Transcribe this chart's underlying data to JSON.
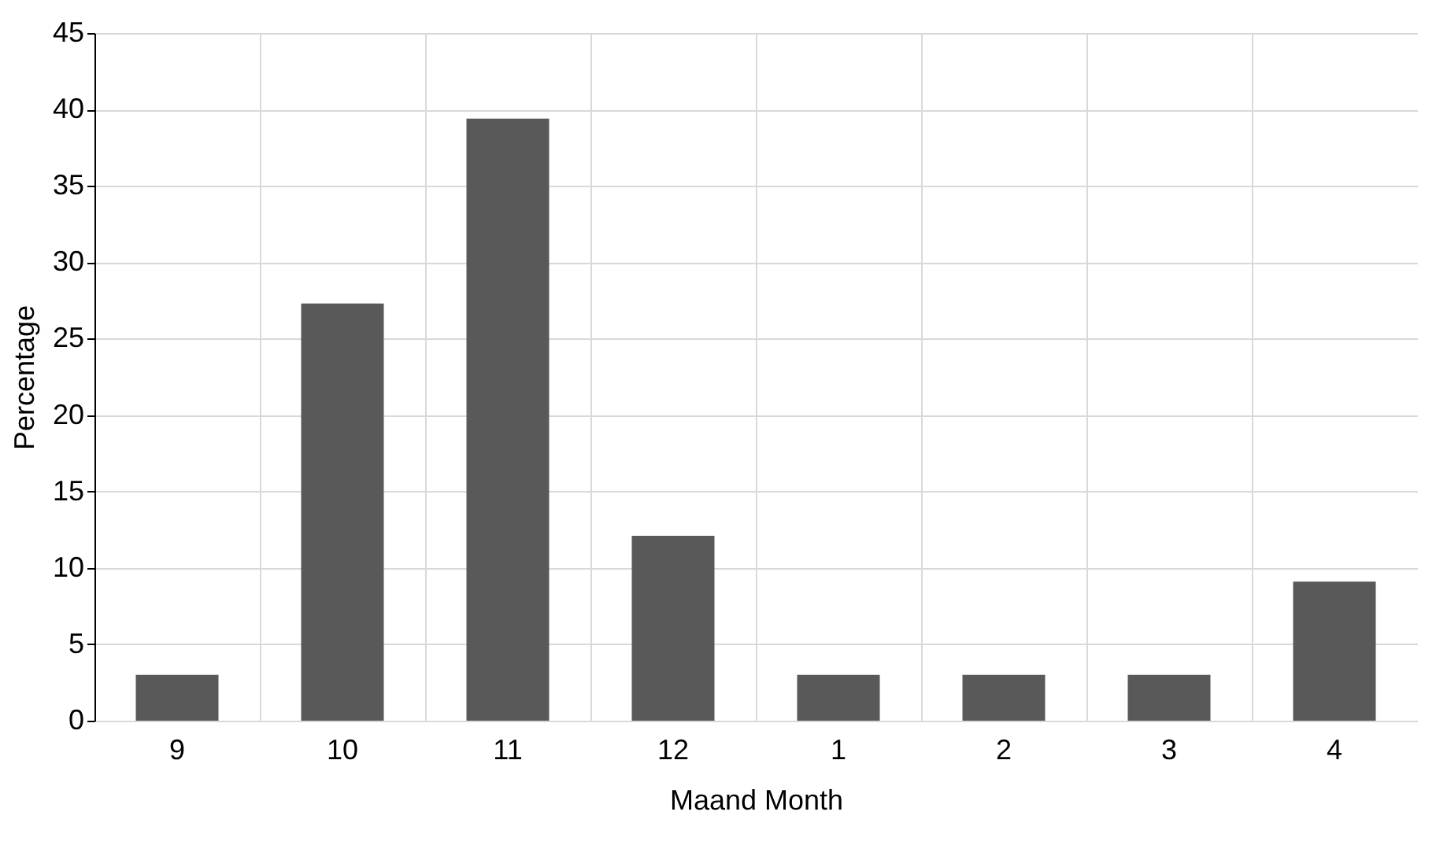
{
  "chart_data": {
    "type": "bar",
    "xlabel": "Maand Month",
    "ylabel": "Percentage",
    "categories": [
      "9",
      "10",
      "11",
      "12",
      "1",
      "2",
      "3",
      "4"
    ],
    "values": [
      3,
      27.3,
      39.4,
      12.1,
      3,
      3,
      3,
      9.1
    ],
    "color": "#595959",
    "ylim": [
      0,
      45
    ],
    "yticks": [
      0,
      5,
      10,
      15,
      20,
      25,
      30,
      35,
      40,
      45
    ],
    "grid": true
  }
}
